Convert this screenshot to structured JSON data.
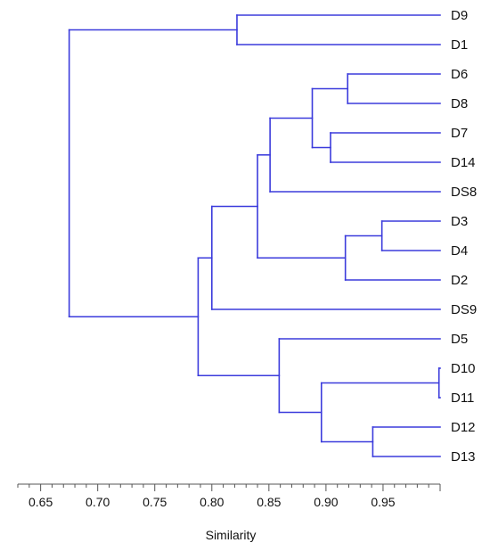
{
  "chart_data": {
    "type": "dendrogram",
    "orientation": "horizontal",
    "xlabel": "Similarity",
    "xlim": [
      0.63,
      1.0
    ],
    "x_ticks": [
      0.65,
      0.7,
      0.75,
      0.8,
      0.85,
      0.9,
      0.95
    ],
    "x_tick_labels": [
      "0.65",
      "0.70",
      "0.75",
      "0.80",
      "0.85",
      "0.90",
      "0.95"
    ],
    "leaves": [
      "D9",
      "D1",
      "D6",
      "D8",
      "D7",
      "D14",
      "DS8",
      "D3",
      "D4",
      "D2",
      "DS9",
      "D5",
      "D10",
      "D11",
      "D12",
      "D13"
    ],
    "merges": [
      {
        "id": "c1",
        "children": [
          "D10",
          "D11"
        ],
        "similarity": 0.999
      },
      {
        "id": "c2",
        "children": [
          "D3",
          "D4"
        ],
        "similarity": 0.949
      },
      {
        "id": "c3",
        "children": [
          "D12",
          "D13"
        ],
        "similarity": 0.941
      },
      {
        "id": "c4",
        "children": [
          "D6",
          "D8"
        ],
        "similarity": 0.919
      },
      {
        "id": "c5",
        "children": [
          "c2",
          "D2"
        ],
        "similarity": 0.917
      },
      {
        "id": "c6",
        "children": [
          "D7",
          "D14"
        ],
        "similarity": 0.904
      },
      {
        "id": "c7",
        "children": [
          "c1",
          "c3"
        ],
        "similarity": 0.896
      },
      {
        "id": "c8",
        "children": [
          "c4",
          "c6"
        ],
        "similarity": 0.888
      },
      {
        "id": "c9",
        "children": [
          "D5",
          "c7"
        ],
        "similarity": 0.859
      },
      {
        "id": "c10",
        "children": [
          "c8",
          "DS8"
        ],
        "similarity": 0.851
      },
      {
        "id": "c11",
        "children": [
          "c10",
          "c5"
        ],
        "similarity": 0.84
      },
      {
        "id": "c12",
        "children": [
          "D9",
          "D1"
        ],
        "similarity": 0.822
      },
      {
        "id": "c13",
        "children": [
          "c11",
          "DS9"
        ],
        "similarity": 0.8
      },
      {
        "id": "c14",
        "children": [
          "c13",
          "c9"
        ],
        "similarity": 0.788
      },
      {
        "id": "c15",
        "children": [
          "c12",
          "c14"
        ],
        "similarity": 0.675
      }
    ],
    "line_color": "#3b3bdc",
    "grid": false
  }
}
